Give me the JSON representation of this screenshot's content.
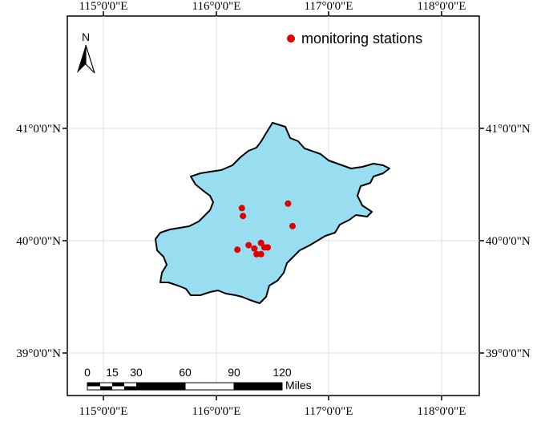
{
  "map": {
    "lon_labels": [
      "115°0'0\"E",
      "116°0'0\"E",
      "117°0'0\"E",
      "118°0'0\"E"
    ],
    "lat_labels": [
      "41°0'0\"N",
      "40°0'0\"N",
      "39°0'0\"N"
    ],
    "north_arrow": {
      "label": "N"
    },
    "legend": {
      "label": "monitoring stations",
      "marker_color": "#e00000"
    },
    "region_fill": "#99ddf0",
    "scale_bar": {
      "ticks": [
        "0",
        "15",
        "30",
        "60",
        "90",
        "120"
      ],
      "unit": "Miles"
    },
    "stations": [
      {
        "lon": 116.23,
        "lat": 40.29
      },
      {
        "lon": 116.24,
        "lat": 40.22
      },
      {
        "lon": 116.64,
        "lat": 40.33
      },
      {
        "lon": 116.68,
        "lat": 40.13
      },
      {
        "lon": 116.29,
        "lat": 39.96
      },
      {
        "lon": 116.19,
        "lat": 39.92
      },
      {
        "lon": 116.34,
        "lat": 39.93
      },
      {
        "lon": 116.4,
        "lat": 39.98
      },
      {
        "lon": 116.43,
        "lat": 39.94
      },
      {
        "lon": 116.46,
        "lat": 39.94
      },
      {
        "lon": 116.36,
        "lat": 39.88
      },
      {
        "lon": 116.4,
        "lat": 39.88
      }
    ]
  }
}
